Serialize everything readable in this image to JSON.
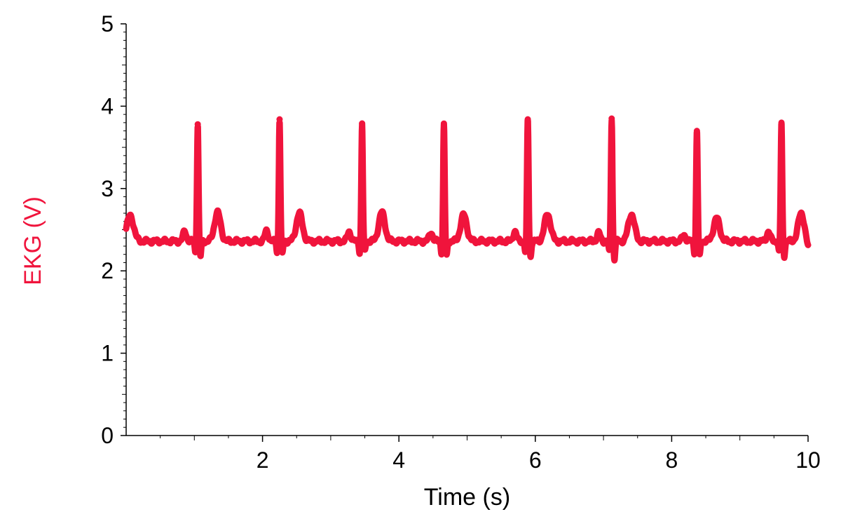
{
  "chart_data": {
    "type": "line",
    "xlabel": "Time (s)",
    "ylabel": "EKG (V)",
    "xlim": [
      0,
      10
    ],
    "ylim": [
      0,
      5
    ],
    "x_ticks": [
      2,
      4,
      6,
      8,
      10
    ],
    "y_ticks": [
      0,
      1,
      2,
      3,
      4,
      5
    ],
    "grid": false,
    "colors": {
      "series": "#f0143c",
      "ylabel": "#f0143c",
      "axis": "#000000"
    },
    "series": [
      {
        "baseline": 2.36,
        "baseline_noise": 0.03,
        "beats": [
          {
            "r_time": 1.05,
            "r_peak": 3.78,
            "s_dip": 2.17,
            "t_peak": 2.71,
            "p_peak": 2.48
          },
          {
            "r_time": 2.25,
            "r_peak": 3.84,
            "s_dip": 2.2,
            "t_peak": 2.7,
            "p_peak": 2.49
          },
          {
            "r_time": 3.46,
            "r_peak": 3.79,
            "s_dip": 2.23,
            "t_peak": 2.71,
            "p_peak": 2.48
          },
          {
            "r_time": 4.66,
            "r_peak": 3.77,
            "s_dip": 2.18,
            "t_peak": 2.68,
            "p_peak": 2.47
          },
          {
            "r_time": 5.89,
            "r_peak": 3.84,
            "s_dip": 2.17,
            "t_peak": 2.69,
            "p_peak": 2.48
          },
          {
            "r_time": 7.12,
            "r_peak": 3.85,
            "s_dip": 2.14,
            "t_peak": 2.69,
            "p_peak": 2.46
          },
          {
            "r_time": 8.37,
            "r_peak": 3.7,
            "s_dip": 2.17,
            "t_peak": 2.64,
            "p_peak": 2.44
          },
          {
            "r_time": 9.61,
            "r_peak": 3.8,
            "s_dip": 2.18,
            "t_peak": 2.7,
            "p_peak": 2.48
          }
        ],
        "start_value": 2.67,
        "end_value": 2.27
      }
    ]
  }
}
